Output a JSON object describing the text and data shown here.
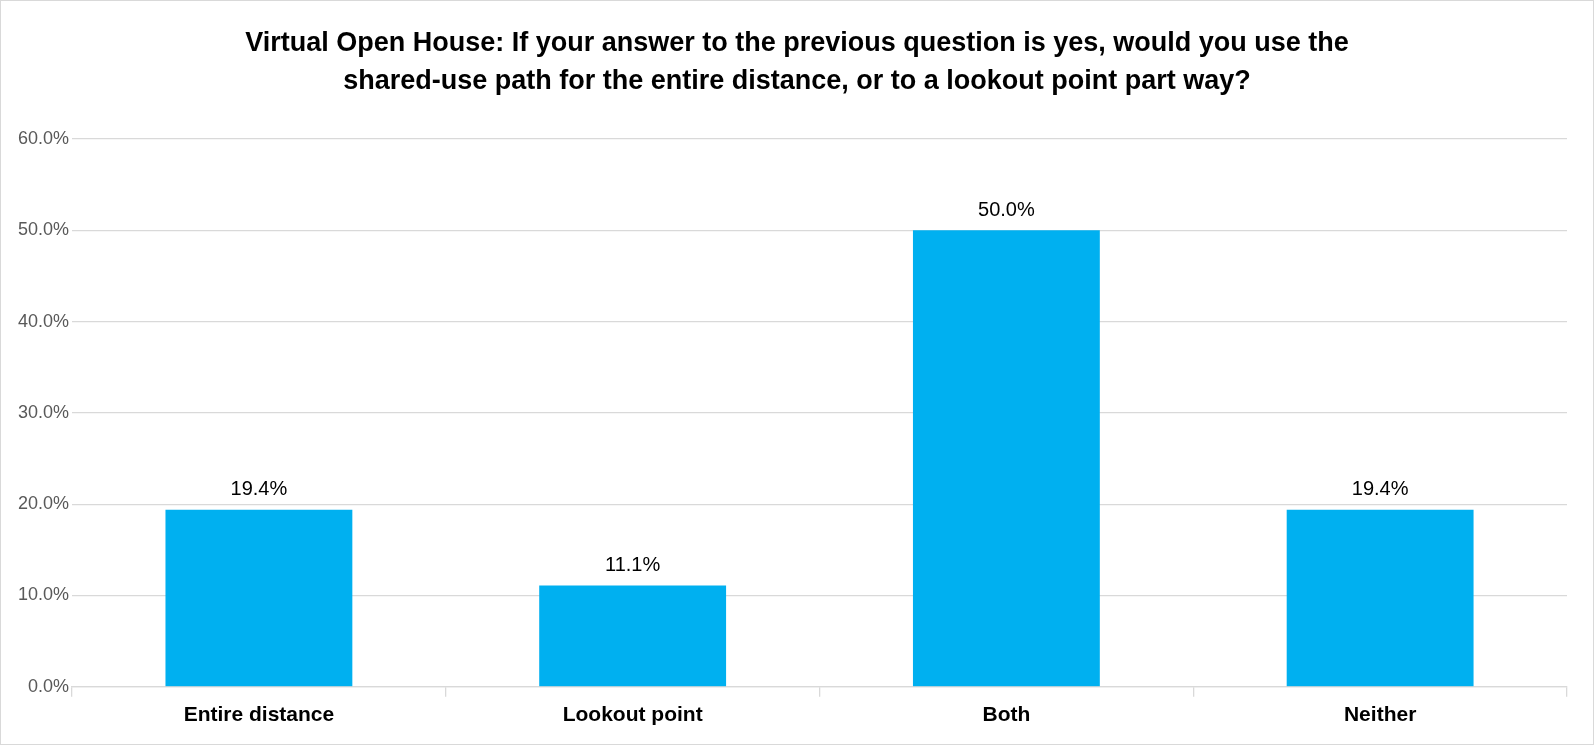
{
  "chart_data": {
    "type": "bar",
    "title": "Virtual Open House: If your answer to the previous question is yes, would you use the shared-use path for the entire distance, or to a lookout point part way?",
    "categories": [
      "Entire distance",
      "Lookout point",
      "Both",
      "Neither"
    ],
    "values": [
      19.4,
      11.1,
      50.0,
      19.4
    ],
    "value_labels": [
      "19.4%",
      "11.1%",
      "50.0%",
      "19.4%"
    ],
    "color": "#00b0f0",
    "ylim": [
      0,
      60
    ],
    "yticks": [
      {
        "value": 0,
        "label": "0.0%"
      },
      {
        "value": 10,
        "label": "10.0%"
      },
      {
        "value": 20,
        "label": "20.0%"
      },
      {
        "value": 30,
        "label": "30.0%"
      },
      {
        "value": 40,
        "label": "40.0%"
      },
      {
        "value": 50,
        "label": "50.0%"
      },
      {
        "value": 60,
        "label": "60.0%"
      }
    ],
    "grid": "y",
    "legend": false
  }
}
